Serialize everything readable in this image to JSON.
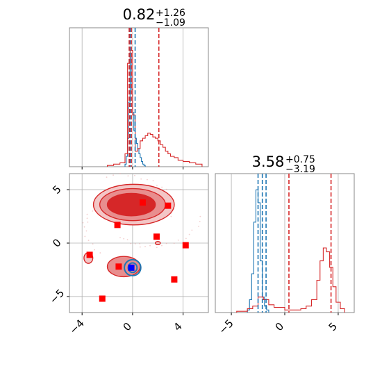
{
  "chart_data": [
    {
      "panel": "marginal-x-top",
      "type": "histogram",
      "title": {
        "main": "0.82",
        "sup": "+1.26",
        "sub": "−1.09"
      },
      "xlim": [
        -5,
        6
      ],
      "grid": true,
      "series": [
        {
          "name": "",
          "color": "#1f77b4",
          "bins_x": [
            -0.6,
            -0.5,
            -0.4,
            -0.3,
            -0.2,
            -0.1,
            0,
            0.1,
            0.2,
            0.3,
            0.4,
            0.5,
            0.6,
            0.7,
            0.8,
            0.9,
            1.0
          ],
          "counts": [
            0.02,
            0.08,
            0.22,
            0.5,
            0.88,
            0.6,
            0.42,
            0.28,
            0.22,
            0.18,
            0.14,
            0.1,
            0.07,
            0.04,
            0.02,
            0.01,
            0
          ]
        },
        {
          "name": "",
          "color": "#d62728",
          "bins_x": [
            -2.0,
            -1.5,
            -1.0,
            -0.6,
            -0.4,
            -0.2,
            0,
            0.2,
            0.4,
            0.6,
            0.8,
            1.0,
            1.2,
            1.4,
            1.6,
            1.8,
            2.0,
            2.2,
            2.4,
            2.6,
            2.8,
            3.0,
            3.3,
            3.6,
            4.0,
            4.5,
            5.0,
            5.5
          ],
          "counts": [
            0.01,
            0.02,
            0.03,
            0.1,
            0.8,
            0.9,
            0.4,
            0.12,
            0.14,
            0.2,
            0.22,
            0.24,
            0.26,
            0.25,
            0.23,
            0.22,
            0.2,
            0.17,
            0.15,
            0.12,
            0.1,
            0.08,
            0.07,
            0.05,
            0.04,
            0.03,
            0.02,
            0.01
          ]
        }
      ],
      "vlines": [
        {
          "x": -0.2,
          "color": "#1f77b4"
        },
        {
          "x": 0.2,
          "color": "#1f77b4"
        },
        {
          "x": -0.1,
          "color": "#d62728"
        },
        {
          "x": 2.08,
          "color": "#d62728"
        },
        {
          "x": -0.27,
          "color": "#d62728"
        }
      ]
    },
    {
      "panel": "joint",
      "type": "scatter",
      "xlim": [
        -5,
        6
      ],
      "ylim": [
        -6.5,
        6.5
      ],
      "xticks": [
        "−4",
        "0",
        "4"
      ],
      "xtick_values": [
        -4,
        0,
        4
      ],
      "yticks": [
        "5",
        "0",
        "−5"
      ],
      "ytick_values": [
        5,
        0,
        -5
      ],
      "grid": true,
      "contours_red": [
        {
          "cx": 0.1,
          "cy": 3.6,
          "rx": 3.2,
          "ry": 1.9
        },
        {
          "cx": 0.0,
          "cy": 3.6,
          "rx": 2.6,
          "ry": 1.5
        },
        {
          "cx": -0.1,
          "cy": 3.6,
          "rx": 1.9,
          "ry": 1.05
        },
        {
          "cx": -0.7,
          "cy": -2.2,
          "rx": 1.3,
          "ry": 0.95
        },
        {
          "cx": -3.5,
          "cy": -1.4,
          "rx": 0.35,
          "ry": 0.5
        },
        {
          "cx": 2.0,
          "cy": 0.0,
          "rx": 0.2,
          "ry": 0.15
        }
      ],
      "contours_blue": [
        {
          "cx": 0.0,
          "cy": -2.3,
          "rx": 0.65,
          "ry": 0.75
        },
        {
          "cx": 0.0,
          "cy": -2.3,
          "rx": 0.35,
          "ry": 0.45
        }
      ],
      "red_squares": [
        [
          0.8,
          3.8
        ],
        [
          2.8,
          3.5
        ],
        [
          -1.2,
          1.7
        ],
        [
          1.9,
          0.6
        ],
        [
          4.2,
          -0.2
        ],
        [
          -3.4,
          -1.1
        ],
        [
          -1.1,
          -2.2
        ],
        [
          -2.4,
          -5.2
        ],
        [
          3.3,
          -3.4
        ]
      ],
      "blue_squares": [
        [
          -0.1,
          -2.3
        ]
      ]
    },
    {
      "panel": "marginal-y-right",
      "type": "histogram",
      "title": {
        "main": "3.58",
        "sup": "+0.75",
        "sub": "−3.19"
      },
      "xlim": [
        -6.5,
        6.5
      ],
      "xticks": [
        "−5",
        "0",
        "5"
      ],
      "xtick_values": [
        -5,
        0,
        5
      ],
      "grid": true,
      "series": [
        {
          "name": "",
          "color": "#1f77b4",
          "bins_x": [
            -3.5,
            -3.3,
            -3.1,
            -2.9,
            -2.7,
            -2.5,
            -2.3,
            -2.1,
            -1.9,
            -1.7,
            -1.5
          ],
          "counts": [
            0.02,
            0.1,
            0.3,
            0.7,
            0.95,
            0.85,
            0.4,
            0.12,
            0.05,
            0.02,
            0
          ]
        },
        {
          "name": "",
          "color": "#d62728",
          "bins_x": [
            -4.5,
            -3.5,
            -3.0,
            -2.5,
            -2.0,
            -1.5,
            -1.0,
            0,
            1,
            1.5,
            2.0,
            2.5,
            3.0,
            3.3,
            3.6,
            3.9,
            4.2,
            4.5,
            4.8,
            5.2,
            5.6
          ],
          "counts": [
            0.01,
            0.03,
            0.05,
            0.12,
            0.1,
            0.06,
            0.04,
            0.02,
            0.02,
            0.03,
            0.05,
            0.1,
            0.25,
            0.4,
            0.5,
            0.47,
            0.35,
            0.2,
            0.08,
            0.03,
            0.01
          ]
        }
      ],
      "vlines": [
        {
          "x": -2.5,
          "color": "#1f77b4"
        },
        {
          "x": -1.75,
          "color": "#1f77b4"
        },
        {
          "x": -2.1,
          "color": "#1f77b4"
        },
        {
          "x": 0.39,
          "color": "#d62728"
        },
        {
          "x": 4.33,
          "color": "#d62728"
        }
      ]
    }
  ]
}
